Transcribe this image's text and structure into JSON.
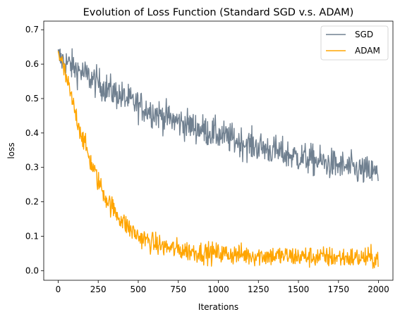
{
  "chart_data": {
    "type": "line",
    "title": "Evolution of Loss Function (Standard SGD v.s. ADAM)",
    "xlabel": "Iterations",
    "ylabel": "loss",
    "xlim": [
      -90,
      2090
    ],
    "ylim": [
      -0.028,
      0.725
    ],
    "xticks": [
      0,
      250,
      500,
      750,
      1000,
      1250,
      1500,
      1750,
      2000
    ],
    "yticks": [
      0.0,
      0.1,
      0.2,
      0.3,
      0.4,
      0.5,
      0.6,
      0.7
    ],
    "grid": false,
    "legend": "top-right",
    "series": [
      {
        "name": "SGD",
        "color": "#708090",
        "x": [
          0,
          100,
          200,
          300,
          400,
          500,
          600,
          700,
          800,
          900,
          1000,
          1100,
          1200,
          1300,
          1400,
          1500,
          1600,
          1700,
          1800,
          1900,
          2000
        ],
        "y": [
          0.62,
          0.59,
          0.56,
          0.53,
          0.505,
          0.48,
          0.46,
          0.44,
          0.425,
          0.41,
          0.395,
          0.38,
          0.365,
          0.355,
          0.34,
          0.33,
          0.32,
          0.31,
          0.3,
          0.29,
          0.28
        ],
        "noise": 0.032
      },
      {
        "name": "ADAM",
        "color": "#FFA500",
        "x": [
          0,
          50,
          100,
          150,
          200,
          250,
          300,
          350,
          400,
          450,
          500,
          600,
          700,
          800,
          900,
          1000,
          1200,
          1400,
          1600,
          1800,
          2000
        ],
        "y": [
          0.64,
          0.56,
          0.47,
          0.39,
          0.32,
          0.26,
          0.21,
          0.175,
          0.145,
          0.12,
          0.1,
          0.078,
          0.065,
          0.058,
          0.053,
          0.05,
          0.045,
          0.042,
          0.04,
          0.038,
          0.036
        ],
        "noise": 0.022
      }
    ]
  }
}
